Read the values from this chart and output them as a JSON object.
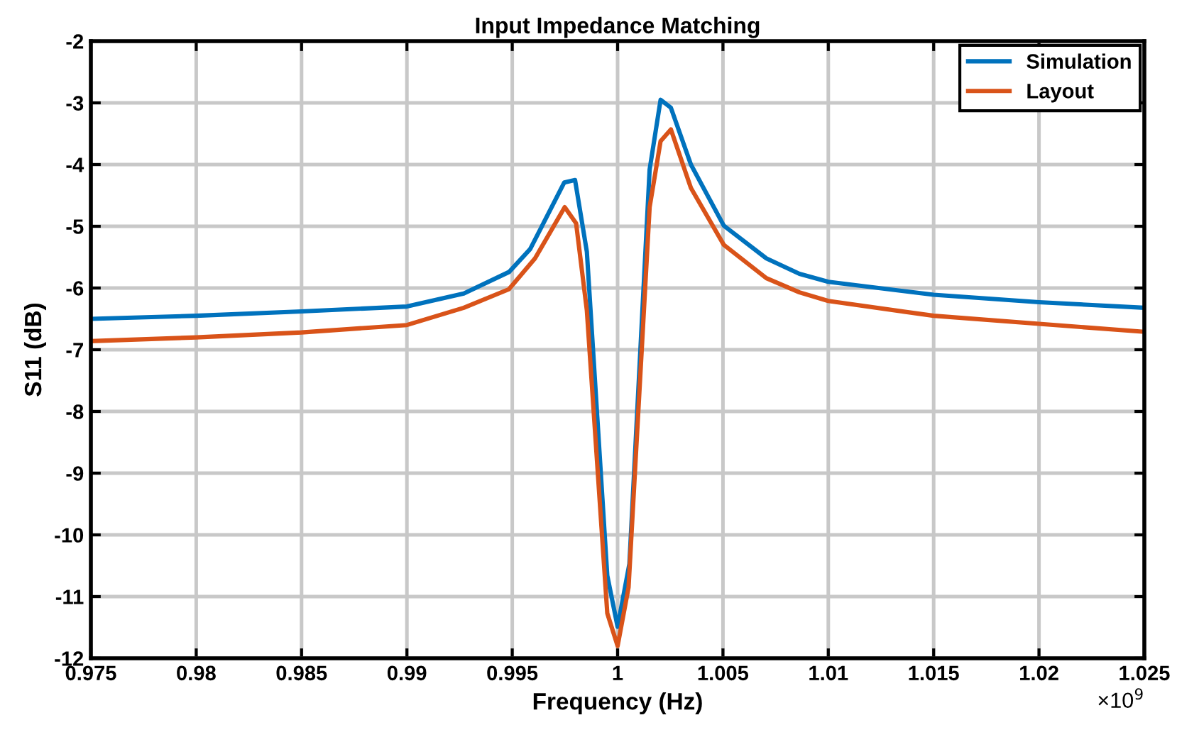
{
  "chart_data": {
    "type": "line",
    "title": "Input Impedance Matching",
    "xlabel": "Frequency (Hz)",
    "ylabel": "S11 (dB)",
    "annotations": [
      "×10$^{9}$"
    ],
    "xlim": [
      0.975,
      1.025
    ],
    "xticks": [
      0.975,
      0.98,
      0.985,
      0.99,
      0.995,
      1,
      1.005,
      1.01,
      1.015,
      1.02,
      1.025
    ],
    "ylim": [
      -12,
      -2
    ],
    "yticks": [
      -12,
      -11,
      -10,
      -9,
      -8,
      -7,
      -6,
      -5,
      -4,
      -3,
      -2
    ],
    "grid": true,
    "legend": "top right",
    "line_style": "solid",
    "marker": "none",
    "series": [
      {
        "name": "Simulation",
        "color": "#0072bd",
        "x": [
          0.975,
          0.98,
          0.985,
          0.99,
          0.9927,
          0.99485,
          0.99585,
          0.99747,
          0.99798,
          0.99854,
          0.99951,
          1.0,
          1.00056,
          1.00152,
          1.00204,
          1.00253,
          1.00348,
          1.00504,
          1.00706,
          1.00863,
          1.01,
          1.015,
          1.02,
          1.025
        ],
        "values": [
          -6.5,
          -6.45,
          -6.38,
          -6.3,
          -6.09,
          -5.74,
          -5.37,
          -4.29,
          -4.25,
          -5.41,
          -10.66,
          -11.49,
          -10.47,
          -4.08,
          -2.95,
          -3.08,
          -4.0,
          -4.99,
          -5.52,
          -5.77,
          -5.9,
          -6.11,
          -6.23,
          -6.32
        ]
      },
      {
        "name": "Layout",
        "color": "#d95319",
        "x": [
          0.975,
          0.98,
          0.985,
          0.99,
          0.9927,
          0.99484,
          0.99608,
          0.99749,
          0.99803,
          0.99854,
          0.99951,
          1.0,
          1.00052,
          1.00152,
          1.00204,
          1.00253,
          1.00348,
          1.00504,
          1.00706,
          1.00863,
          1.01,
          1.015,
          1.02,
          1.025
        ],
        "values": [
          -6.86,
          -6.8,
          -6.72,
          -6.6,
          -6.32,
          -6.02,
          -5.52,
          -4.69,
          -4.95,
          -6.36,
          -11.27,
          -11.8,
          -10.85,
          -4.69,
          -3.62,
          -3.43,
          -4.38,
          -5.3,
          -5.84,
          -6.07,
          -6.21,
          -6.45,
          -6.58,
          -6.71
        ]
      }
    ]
  }
}
